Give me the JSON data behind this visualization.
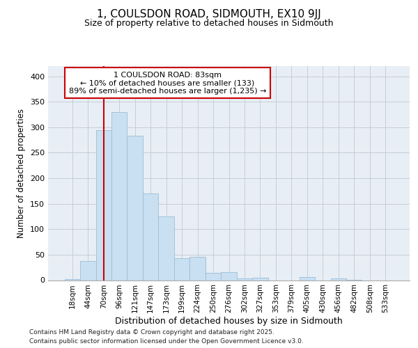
{
  "title": "1, COULSDON ROAD, SIDMOUTH, EX10 9JJ",
  "subtitle": "Size of property relative to detached houses in Sidmouth",
  "xlabel": "Distribution of detached houses by size in Sidmouth",
  "ylabel": "Number of detached properties",
  "categories": [
    "18sqm",
    "44sqm",
    "70sqm",
    "96sqm",
    "121sqm",
    "147sqm",
    "173sqm",
    "199sqm",
    "224sqm",
    "250sqm",
    "276sqm",
    "302sqm",
    "327sqm",
    "353sqm",
    "379sqm",
    "405sqm",
    "430sqm",
    "456sqm",
    "482sqm",
    "508sqm",
    "533sqm"
  ],
  "values": [
    2,
    38,
    295,
    330,
    283,
    170,
    125,
    43,
    46,
    15,
    16,
    4,
    5,
    0,
    0,
    6,
    0,
    3,
    1,
    0,
    0
  ],
  "bar_color": "#c9dff2",
  "bar_edge_color": "#9bbdd6",
  "grid_color": "#c5cdd8",
  "background_color": "#e8eef5",
  "marker_color": "#cc0000",
  "annotation_line1": "1 COULSDON ROAD: 83sqm",
  "annotation_line2": "← 10% of detached houses are smaller (133)",
  "annotation_line3": "89% of semi-detached houses are larger (1,235) →",
  "annotation_box_color": "#ffffff",
  "annotation_box_edge": "#cc0000",
  "footer_line1": "Contains HM Land Registry data © Crown copyright and database right 2025.",
  "footer_line2": "Contains public sector information licensed under the Open Government Licence v3.0.",
  "ylim": [
    0,
    420
  ],
  "yticks": [
    0,
    50,
    100,
    150,
    200,
    250,
    300,
    350,
    400
  ]
}
